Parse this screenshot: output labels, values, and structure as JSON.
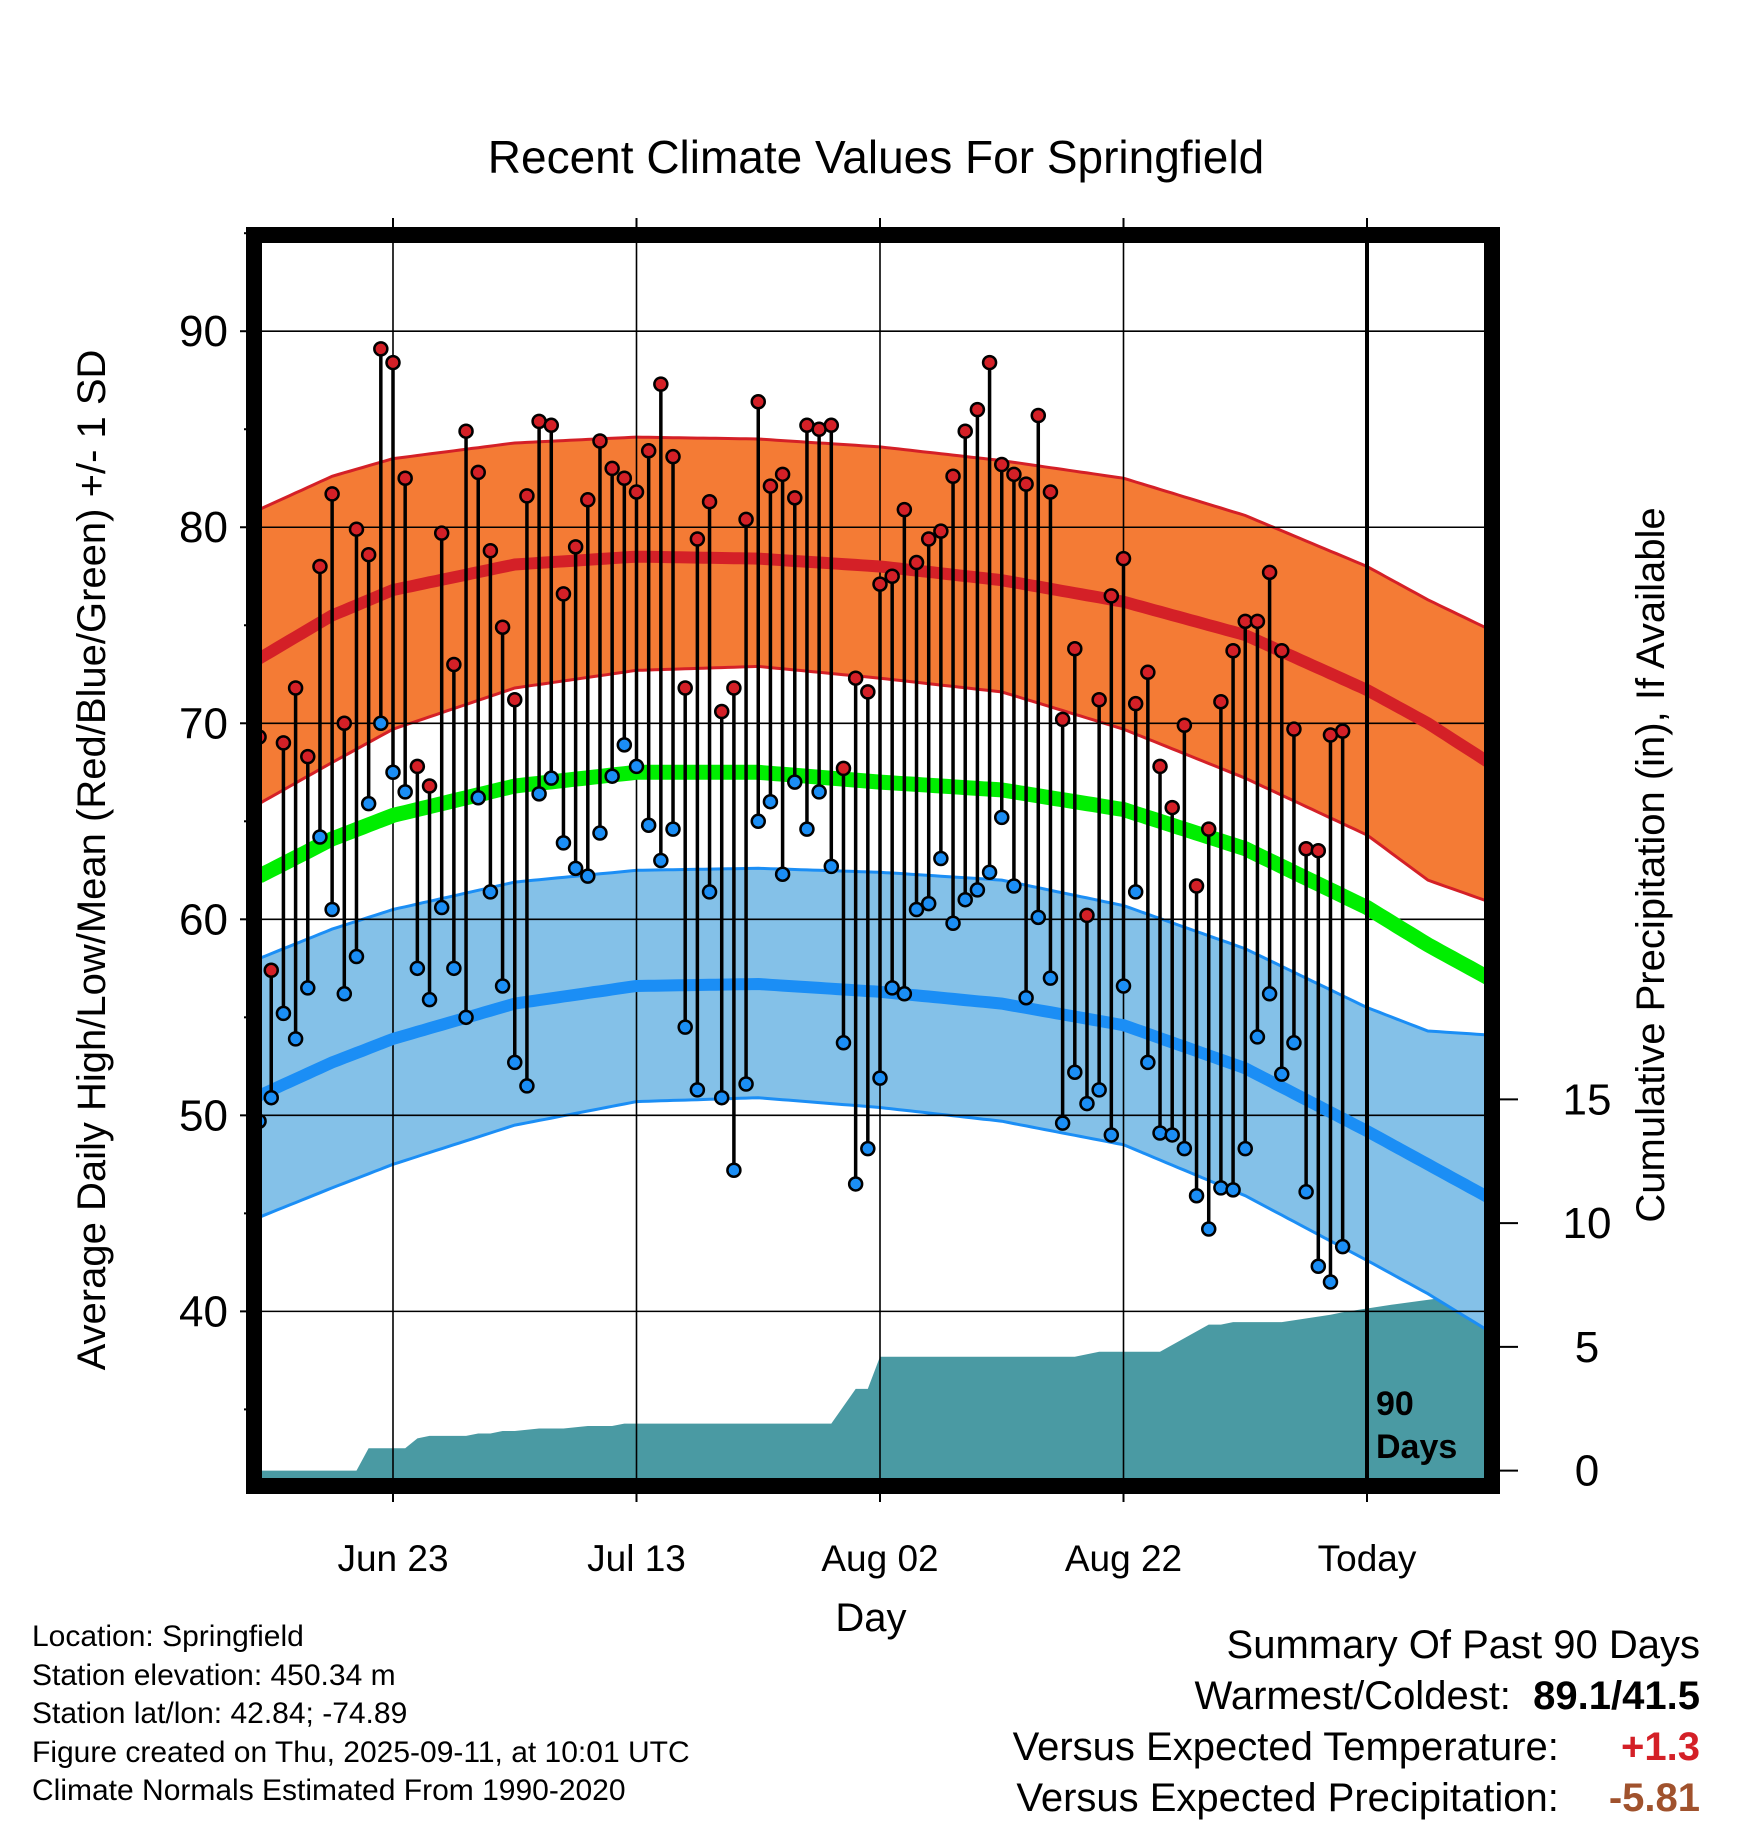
{
  "chart_data": {
    "type": "line",
    "title": "Recent Climate Values For Springfield",
    "xlabel": "Day",
    "ylabel": "Average Daily High/Low/Mean (Red/Blue/Green) +/- 1 SD",
    "y2label": "Cumulative Precipitation (in), If Available",
    "xlim": [
      -11.5,
      90
    ],
    "ylim": [
      31.5,
      94.5
    ],
    "y2lim": [
      -0.3,
      49.6
    ],
    "x_ticks": [
      {
        "day": 0,
        "label": "Jun 23"
      },
      {
        "day": 20,
        "label": "Jul 13"
      },
      {
        "day": 40,
        "label": "Aug 02"
      },
      {
        "day": 60,
        "label": "Aug 22"
      },
      {
        "day": 80,
        "label": "Today"
      }
    ],
    "y_ticks": [
      40,
      50,
      60,
      70,
      80,
      90
    ],
    "y2_ticks": [
      0,
      5,
      10,
      15
    ],
    "grid": true,
    "today_marker": {
      "day": 80,
      "label_line1": "90",
      "label_line2": "Days"
    },
    "colors": {
      "high": "#d42027",
      "high_band": "#f47b35",
      "mean": "#00ee00",
      "low": "#1b8ef5",
      "low_band": "#84c1e8",
      "precip": "#4a9aa3",
      "frame": "#000000"
    },
    "normals": {
      "day": [
        -11,
        -5,
        0,
        10,
        20,
        30,
        40,
        50,
        60,
        70,
        80,
        85,
        90
      ],
      "high_mean": [
        73.3,
        75.5,
        76.8,
        78.1,
        78.5,
        78.4,
        78.0,
        77.3,
        76.2,
        74.5,
        71.7,
        70.0,
        68.0
      ],
      "high_sd_upper": [
        80.9,
        82.6,
        83.5,
        84.3,
        84.6,
        84.5,
        84.1,
        83.4,
        82.5,
        80.6,
        78.0,
        76.3,
        74.8
      ],
      "high_sd_lower": [
        65.9,
        68.0,
        69.7,
        71.8,
        72.7,
        72.9,
        72.3,
        71.6,
        69.7,
        67.2,
        64.3,
        62.0,
        60.9
      ],
      "mean_mean": [
        62.2,
        64.1,
        65.3,
        66.8,
        67.5,
        67.5,
        67.0,
        66.6,
        65.6,
        63.6,
        60.6,
        58.7,
        57.0
      ],
      "low_mean": [
        51.0,
        52.7,
        53.9,
        55.7,
        56.6,
        56.7,
        56.3,
        55.7,
        54.6,
        52.4,
        49.2,
        47.5,
        45.8
      ],
      "low_sd_upper": [
        58.0,
        59.5,
        60.5,
        61.9,
        62.5,
        62.6,
        62.4,
        62.0,
        60.7,
        58.5,
        55.5,
        54.3,
        54.1
      ],
      "low_sd_lower": [
        44.8,
        46.3,
        47.5,
        49.5,
        50.7,
        50.9,
        50.4,
        49.7,
        48.5,
        45.9,
        42.6,
        40.9,
        39.0
      ]
    },
    "highs": [
      69.3,
      57.4,
      69.0,
      71.8,
      68.3,
      78.0,
      81.7,
      70.0,
      79.9,
      78.6,
      89.1,
      88.4,
      82.5,
      67.8,
      66.8,
      79.7,
      73.0,
      84.9,
      82.8,
      78.8,
      74.9,
      71.2,
      81.6,
      85.4,
      85.2,
      76.6,
      79.0,
      81.4,
      84.4,
      83.0,
      82.5,
      81.8,
      83.9,
      87.3,
      83.6,
      71.8,
      79.4,
      81.3,
      70.6,
      71.8,
      80.4,
      86.4,
      82.1,
      82.7,
      81.5,
      85.2,
      85.0,
      85.2,
      67.7,
      72.3,
      71.6,
      77.1,
      77.5,
      80.9,
      78.2,
      79.4,
      79.8,
      82.6,
      84.9,
      86.0,
      88.4,
      83.2,
      82.7,
      82.2,
      85.7,
      81.8,
      70.2,
      73.8,
      60.2,
      71.2,
      76.5,
      78.4,
      71.0,
      72.6,
      67.8,
      65.7,
      69.9,
      61.7,
      64.6,
      71.1,
      73.7,
      75.2,
      75.2,
      77.7,
      73.7,
      69.7,
      63.6,
      63.5,
      69.4,
      69.6
    ],
    "lows": [
      49.7,
      50.9,
      55.2,
      53.9,
      56.5,
      64.2,
      60.5,
      56.2,
      58.1,
      65.9,
      70.0,
      67.5,
      66.5,
      57.5,
      55.9,
      60.6,
      57.5,
      55.0,
      66.2,
      61.4,
      56.6,
      52.7,
      51.5,
      66.4,
      67.2,
      63.9,
      62.6,
      62.2,
      64.4,
      67.3,
      68.9,
      67.8,
      64.8,
      63.0,
      64.6,
      54.5,
      51.3,
      61.4,
      50.9,
      47.2,
      51.6,
      65.0,
      66.0,
      62.3,
      67.0,
      64.6,
      66.5,
      62.7,
      53.7,
      46.5,
      48.3,
      51.9,
      56.5,
      56.2,
      60.5,
      60.8,
      63.1,
      59.8,
      61.0,
      61.5,
      62.4,
      65.2,
      61.7,
      56.0,
      60.1,
      57.0,
      49.6,
      52.2,
      50.6,
      51.3,
      49.0,
      56.6,
      61.4,
      52.7,
      49.1,
      49.0,
      48.3,
      45.9,
      44.2,
      46.3,
      46.2,
      48.3,
      54.0,
      56.2,
      52.1,
      53.7,
      46.1,
      42.3,
      41.5,
      43.3
    ],
    "precip_cumulative": {
      "day": [
        -11.5,
        -3,
        -2,
        -1,
        0,
        1,
        2,
        3,
        4,
        5,
        6,
        7,
        8,
        9,
        10,
        12,
        14,
        16,
        18,
        19,
        22,
        30,
        36,
        38,
        39,
        40,
        45,
        52,
        56,
        58,
        63,
        67,
        68,
        69,
        73,
        77,
        78,
        82,
        88,
        90
      ],
      "value": [
        0,
        0,
        0.9,
        0.9,
        0.9,
        0.9,
        1.3,
        1.4,
        1.4,
        1.4,
        1.4,
        1.5,
        1.5,
        1.6,
        1.6,
        1.7,
        1.7,
        1.8,
        1.8,
        1.9,
        1.9,
        1.9,
        1.9,
        3.3,
        3.3,
        4.6,
        4.6,
        4.6,
        4.6,
        4.8,
        4.8,
        5.9,
        5.9,
        6.0,
        6.0,
        6.3,
        6.4,
        6.7,
        7.1,
        7.1
      ]
    }
  },
  "footer": {
    "location": "Location: Springfield",
    "elevation": "Station elevation: 450.34 m",
    "latlon": "Station lat/lon: 42.84; -74.89",
    "created": "Figure created on Thu, 2025-09-11, at 10:01 UTC",
    "normals": "Climate Normals Estimated From 1990-2020"
  },
  "summary": {
    "heading": "Summary Of Past 90 Days",
    "warm_cold_label": "Warmest/Coldest:",
    "warmest": "89.1",
    "separator": "/",
    "coldest": "41.5",
    "temp_label": "Versus Expected Temperature:",
    "temp_value": "+1.3",
    "temp_color": "#d42027",
    "precip_label": "Versus Expected Precipitation:",
    "precip_value": "-5.81",
    "precip_color": "#a0522d"
  }
}
